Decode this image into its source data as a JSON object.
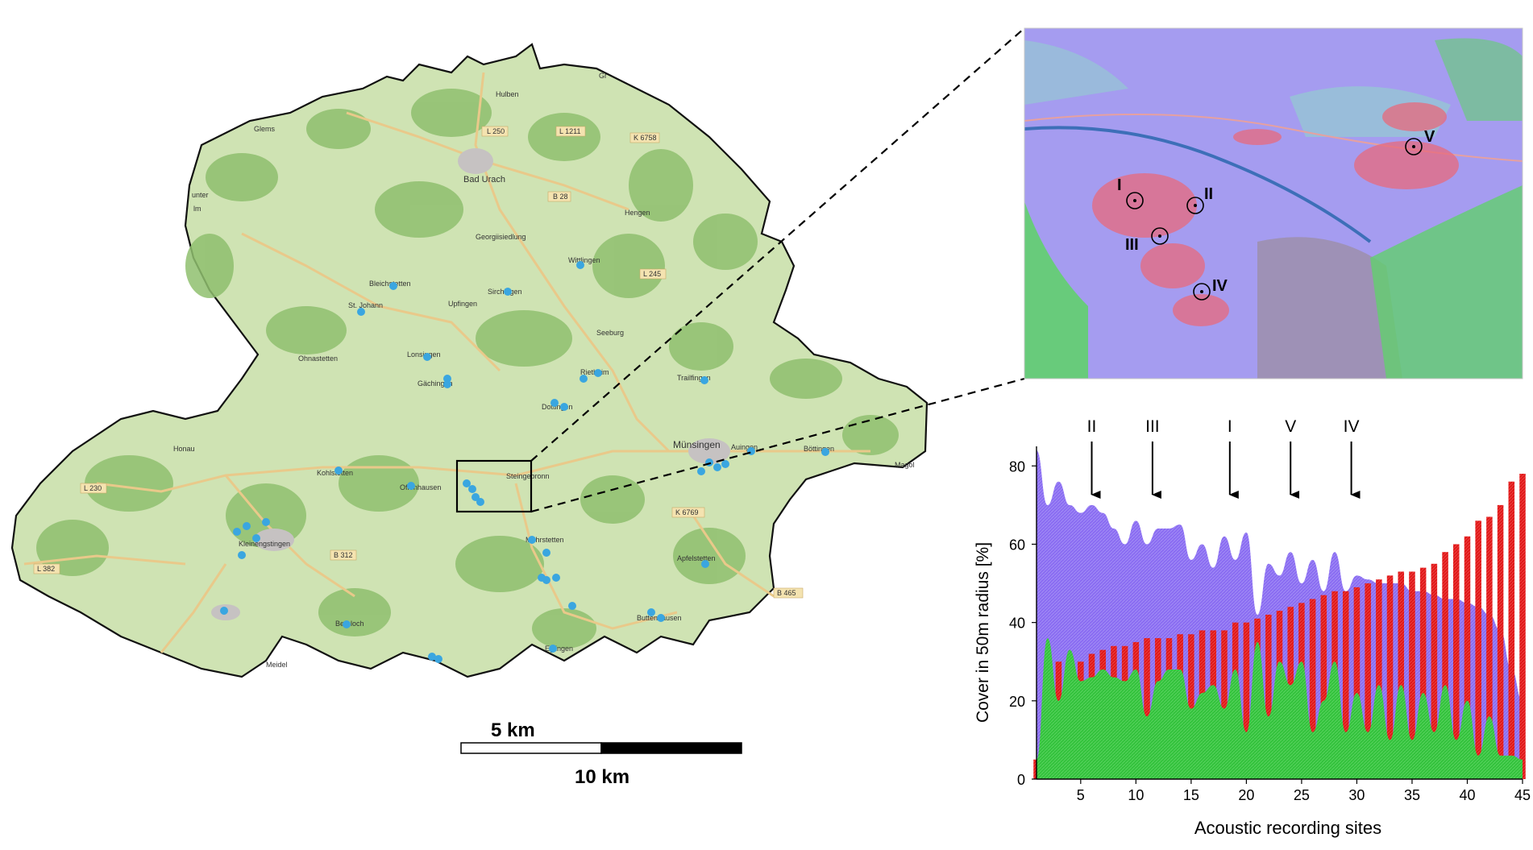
{
  "map": {
    "places": [
      {
        "name": "Bad Urach"
      },
      {
        "name": "Hulben"
      },
      {
        "name": "Glems"
      },
      {
        "name": "Georgiisiedlung"
      },
      {
        "name": "Hengen"
      },
      {
        "name": "Wittlingen"
      },
      {
        "name": "Bleichstetten"
      },
      {
        "name": "St. Johann"
      },
      {
        "name": "Upfingen"
      },
      {
        "name": "Sirchingen"
      },
      {
        "name": "Seeburg"
      },
      {
        "name": "Ohnastetten"
      },
      {
        "name": "Lonsingen"
      },
      {
        "name": "Gächingen"
      },
      {
        "name": "Rietheim"
      },
      {
        "name": "Trailfingen"
      },
      {
        "name": "Dottingen"
      },
      {
        "name": "Münsingen"
      },
      {
        "name": "Auingen"
      },
      {
        "name": "Böttingen"
      },
      {
        "name": "Magol"
      },
      {
        "name": "Honau"
      },
      {
        "name": "Kohlstetten"
      },
      {
        "name": "Offenhausen"
      },
      {
        "name": "Steingebronn"
      },
      {
        "name": "Kleinengstingen"
      },
      {
        "name": "Mehrstetten"
      },
      {
        "name": "Apfelstetten"
      },
      {
        "name": "Bernloch"
      },
      {
        "name": "Buttenhausen"
      },
      {
        "name": "Eglingen"
      },
      {
        "name": "Meidel"
      },
      {
        "name": "unter"
      },
      {
        "name": "lm"
      },
      {
        "name": "Gr"
      }
    ],
    "roads": [
      "L 250",
      "L 1211",
      "K 6758",
      "B 28",
      "L 245",
      "L 230",
      "L 382",
      "B 312",
      "K 6769",
      "B 465"
    ],
    "marker_color": "#3aa6e0"
  },
  "scalebar": {
    "label_top": "5 km",
    "label_bottom": "10 km"
  },
  "inset": {
    "sites": [
      {
        "label": "I"
      },
      {
        "label": "II"
      },
      {
        "label": "III"
      },
      {
        "label": "IV"
      },
      {
        "label": "V"
      }
    ]
  },
  "chart_data": {
    "type": "area",
    "xlabel": "Acoustic recording sites",
    "ylabel": "Cover in 50m radius [%]",
    "xlim": [
      1,
      45
    ],
    "ylim": [
      0,
      85
    ],
    "xticks": [
      5,
      10,
      15,
      20,
      25,
      30,
      35,
      40,
      45
    ],
    "yticks": [
      0,
      20,
      40,
      60,
      80
    ],
    "annotations": [
      {
        "label": "II",
        "x": 6
      },
      {
        "label": "III",
        "x": 11.5
      },
      {
        "label": "I",
        "x": 18.5
      },
      {
        "label": "V",
        "x": 24
      },
      {
        "label": "IV",
        "x": 29.5
      }
    ],
    "x": [
      1,
      2,
      3,
      4,
      5,
      6,
      7,
      8,
      9,
      10,
      11,
      12,
      13,
      14,
      15,
      16,
      17,
      18,
      19,
      20,
      21,
      22,
      23,
      24,
      25,
      26,
      27,
      28,
      29,
      30,
      31,
      32,
      33,
      34,
      35,
      36,
      37,
      38,
      39,
      40,
      41,
      42,
      43,
      44,
      45
    ],
    "series": [
      {
        "color": "#8b6cf0",
        "kind": "area",
        "values": [
          84,
          70,
          76,
          70,
          68,
          70,
          68,
          64,
          60,
          66,
          60,
          64,
          64,
          65,
          56,
          60,
          54,
          62,
          56,
          63,
          42,
          55,
          52,
          58,
          50,
          56,
          48,
          58,
          48,
          52,
          51,
          50,
          50,
          50,
          48,
          48,
          47,
          46,
          46,
          45,
          44,
          42,
          38,
          28,
          20
        ]
      },
      {
        "color": "#dd1010",
        "kind": "bar",
        "values": [
          5,
          10,
          30,
          30,
          30,
          32,
          33,
          34,
          34,
          35,
          36,
          36,
          36,
          37,
          37,
          38,
          38,
          38,
          40,
          40,
          41,
          42,
          43,
          44,
          45,
          46,
          47,
          48,
          48,
          49,
          50,
          51,
          52,
          53,
          53,
          54,
          55,
          58,
          60,
          62,
          66,
          67,
          70,
          76,
          78
        ]
      },
      {
        "color": "#2ec23a",
        "kind": "area",
        "values": [
          5,
          36,
          20,
          33,
          25,
          26,
          28,
          26,
          25,
          28,
          16,
          25,
          28,
          28,
          18,
          22,
          24,
          18,
          28,
          12,
          35,
          16,
          30,
          24,
          30,
          12,
          20,
          30,
          12,
          22,
          12,
          24,
          10,
          24,
          10,
          22,
          12,
          24,
          10,
          20,
          6,
          16,
          6,
          6,
          5
        ]
      }
    ]
  }
}
